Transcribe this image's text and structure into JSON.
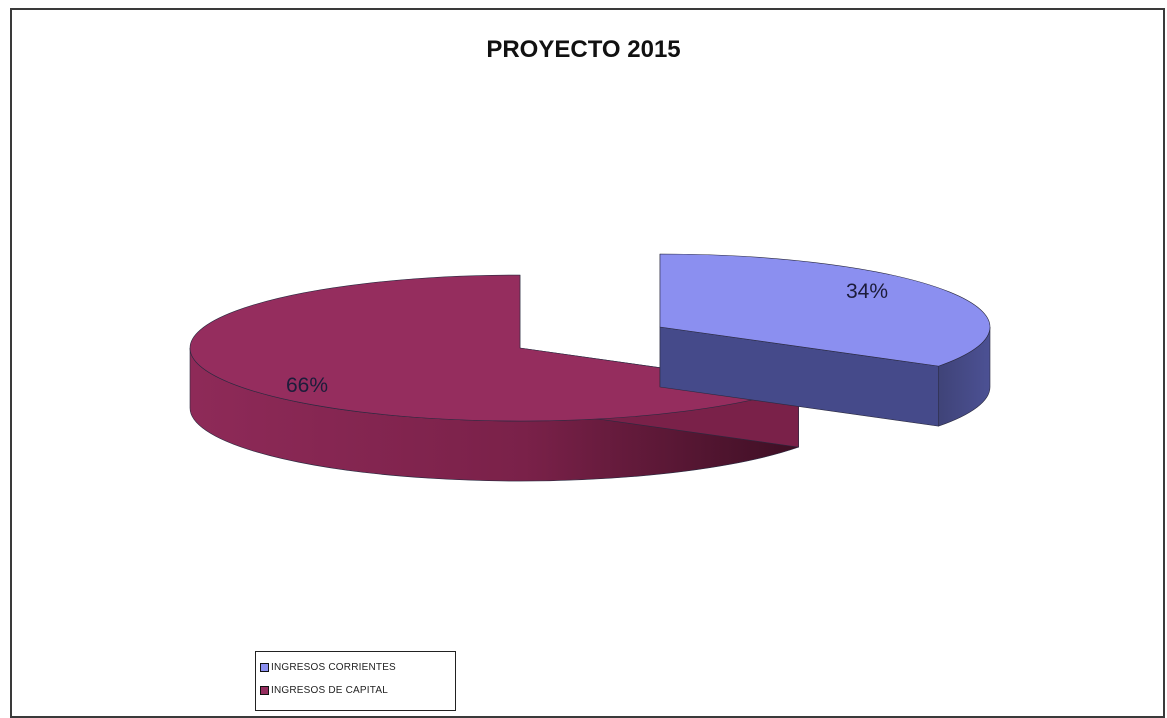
{
  "chart_data": {
    "type": "pie",
    "title": "PROYECTO 2015",
    "three_d": true,
    "exploded": true,
    "slices": [
      {
        "name": "INGRESOS CORRIENTES",
        "value": 34,
        "label": "34%",
        "top_color": "#8b8ff0",
        "side_color": "#454a8a"
      },
      {
        "name": "INGRESOS DE CAPITAL",
        "value": 66,
        "label": "66%",
        "top_color": "#952d5e",
        "side_color": "#7a2149"
      }
    ],
    "legend": {
      "placement": "bottom-left",
      "entries": [
        "INGRESOS CORRIENTES",
        "INGRESOS DE CAPITAL"
      ]
    }
  }
}
